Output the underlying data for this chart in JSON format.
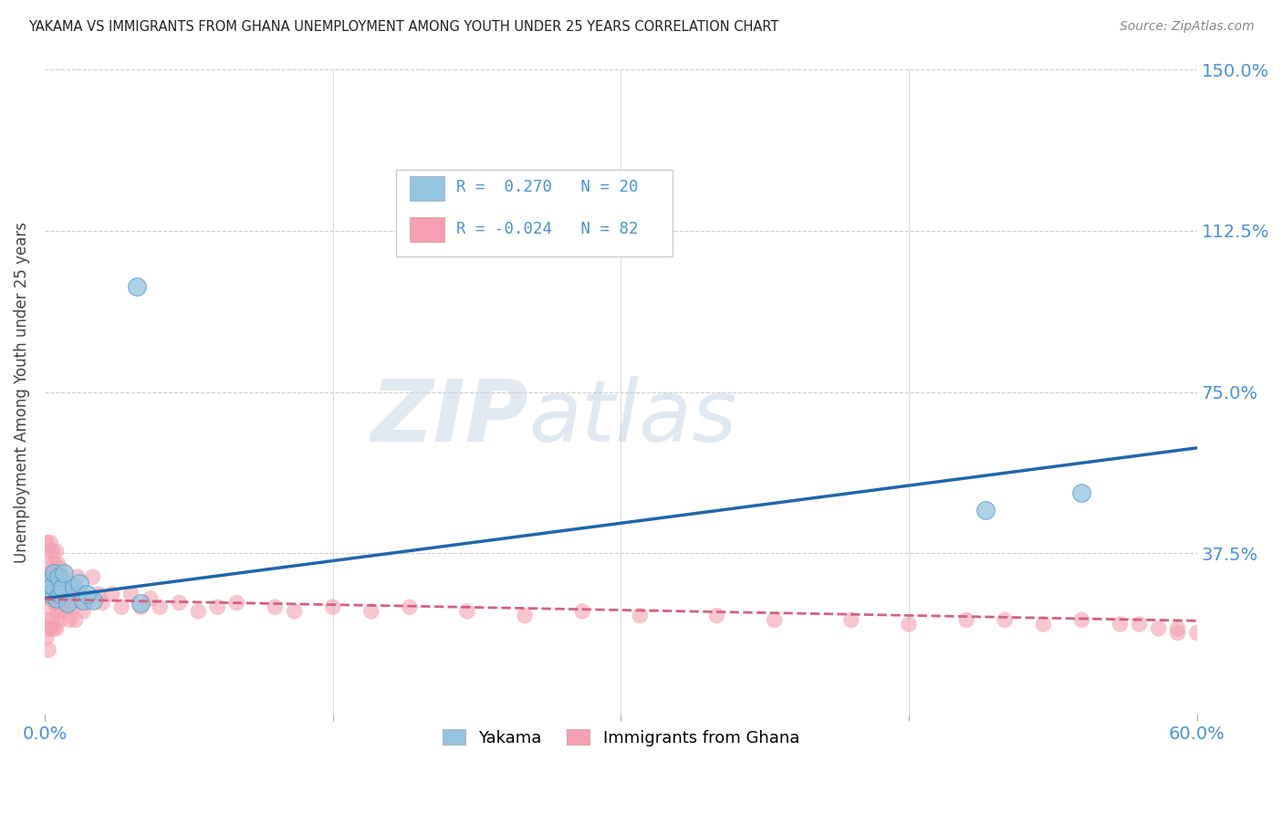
{
  "title": "YAKAMA VS IMMIGRANTS FROM GHANA UNEMPLOYMENT AMONG YOUTH UNDER 25 YEARS CORRELATION CHART",
  "source": "Source: ZipAtlas.com",
  "ylabel": "Unemployment Among Youth under 25 years",
  "xlim": [
    0.0,
    0.6
  ],
  "ylim": [
    0.0,
    1.5
  ],
  "xticks": [
    0.0,
    0.15,
    0.3,
    0.45,
    0.6
  ],
  "yticks": [
    0.0,
    0.375,
    0.75,
    1.125,
    1.5
  ],
  "ytick_labels": [
    "",
    "37.5%",
    "75.0%",
    "112.5%",
    "150.0%"
  ],
  "xtick_labels": [
    "0.0%",
    "",
    "",
    "",
    "60.0%"
  ],
  "color_yakama": "#93c4e0",
  "color_ghana": "#f4a0b0",
  "color_trendline_yakama": "#2166ac",
  "color_trendline_ghana": "#d46080",
  "color_axis": "#4a90d9",
  "watermark_zip": "ZIP",
  "watermark_atlas": "atlas",
  "legend_r1": "R =  0.270   N = 20",
  "legend_r2": "R = -0.024   N = 82",
  "legend_bottom_1": "Yakama",
  "legend_bottom_2": "Immigrants from Ghana",
  "yakama_x": [
    0.001,
    0.002,
    0.003,
    0.004,
    0.005,
    0.006,
    0.007,
    0.008,
    0.009,
    0.01,
    0.012,
    0.015,
    0.02,
    0.025,
    0.05,
    0.048,
    0.49,
    0.54,
    0.018,
    0.022
  ],
  "yakama_y": [
    0.29,
    0.31,
    0.28,
    0.3,
    0.33,
    0.27,
    0.32,
    0.28,
    0.295,
    0.33,
    0.26,
    0.295,
    0.265,
    0.265,
    0.26,
    0.995,
    0.475,
    0.515,
    0.305,
    0.28
  ],
  "ghana_x": [
    0.001,
    0.001,
    0.001,
    0.001,
    0.001,
    0.002,
    0.002,
    0.002,
    0.002,
    0.002,
    0.003,
    0.003,
    0.003,
    0.003,
    0.004,
    0.004,
    0.004,
    0.004,
    0.005,
    0.005,
    0.005,
    0.005,
    0.006,
    0.006,
    0.006,
    0.006,
    0.007,
    0.007,
    0.007,
    0.008,
    0.008,
    0.008,
    0.009,
    0.009,
    0.01,
    0.01,
    0.011,
    0.012,
    0.013,
    0.014,
    0.015,
    0.016,
    0.017,
    0.018,
    0.02,
    0.022,
    0.025,
    0.028,
    0.03,
    0.035,
    0.04,
    0.045,
    0.05,
    0.055,
    0.06,
    0.07,
    0.08,
    0.09,
    0.1,
    0.12,
    0.13,
    0.15,
    0.17,
    0.19,
    0.22,
    0.25,
    0.28,
    0.31,
    0.35,
    0.38,
    0.42,
    0.45,
    0.48,
    0.5,
    0.52,
    0.54,
    0.56,
    0.57,
    0.58,
    0.59,
    0.59,
    0.6
  ],
  "ghana_y": [
    0.35,
    0.28,
    0.22,
    0.18,
    0.4,
    0.38,
    0.3,
    0.25,
    0.2,
    0.15,
    0.4,
    0.33,
    0.27,
    0.2,
    0.38,
    0.32,
    0.28,
    0.22,
    0.35,
    0.3,
    0.26,
    0.2,
    0.38,
    0.32,
    0.26,
    0.2,
    0.35,
    0.3,
    0.24,
    0.34,
    0.28,
    0.22,
    0.3,
    0.24,
    0.32,
    0.26,
    0.28,
    0.25,
    0.22,
    0.28,
    0.25,
    0.22,
    0.32,
    0.28,
    0.24,
    0.26,
    0.32,
    0.28,
    0.26,
    0.28,
    0.25,
    0.28,
    0.25,
    0.27,
    0.25,
    0.26,
    0.24,
    0.25,
    0.26,
    0.25,
    0.24,
    0.25,
    0.24,
    0.25,
    0.24,
    0.23,
    0.24,
    0.23,
    0.23,
    0.22,
    0.22,
    0.21,
    0.22,
    0.22,
    0.21,
    0.22,
    0.21,
    0.21,
    0.2,
    0.2,
    0.19,
    0.19
  ],
  "trendline_yakama_x0": 0.0,
  "trendline_yakama_y0": 0.27,
  "trendline_yakama_x1": 0.6,
  "trendline_yakama_y1": 0.62,
  "trendline_ghana_x0": 0.0,
  "trendline_ghana_y0": 0.268,
  "trendline_ghana_x1": 0.6,
  "trendline_ghana_y1": 0.218
}
